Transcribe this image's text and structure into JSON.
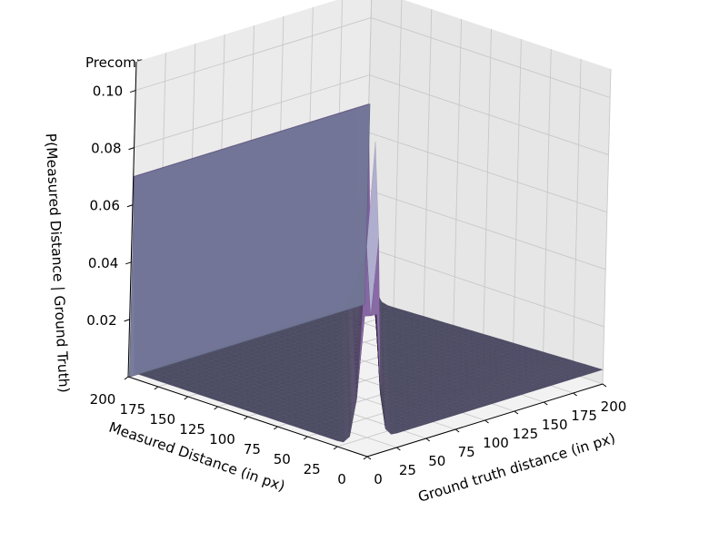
{
  "chart_data": {
    "type": "surface3d",
    "title": "Precomputed Sensor Model",
    "xlabel": "Ground truth distance (in px)",
    "ylabel": "Measured Distance (in px)",
    "zlabel": "P(Measured Distance | Ground Truth)",
    "x_ticks": [
      0,
      25,
      50,
      75,
      100,
      125,
      150,
      175,
      200
    ],
    "y_ticks": [
      0,
      25,
      50,
      75,
      100,
      125,
      150,
      175,
      200
    ],
    "z_ticks": [
      0.02,
      0.04,
      0.06,
      0.08,
      0.1
    ],
    "z_tick_labels": [
      "0.02",
      "0.04",
      "0.06",
      "0.08",
      "0.10"
    ],
    "xlim": [
      0,
      200
    ],
    "ylim": [
      0,
      200
    ],
    "zlim": [
      0,
      0.11
    ],
    "grid": true,
    "colormap": "bone",
    "surface": {
      "description_values": {
        "max_range_plane_value": 0.07,
        "peak_value_at_origin": 0.11,
        "secondary_peak_value": 0.065,
        "short_readings_value_near_zero": 0.005,
        "background_value": 0.002
      }
    }
  }
}
